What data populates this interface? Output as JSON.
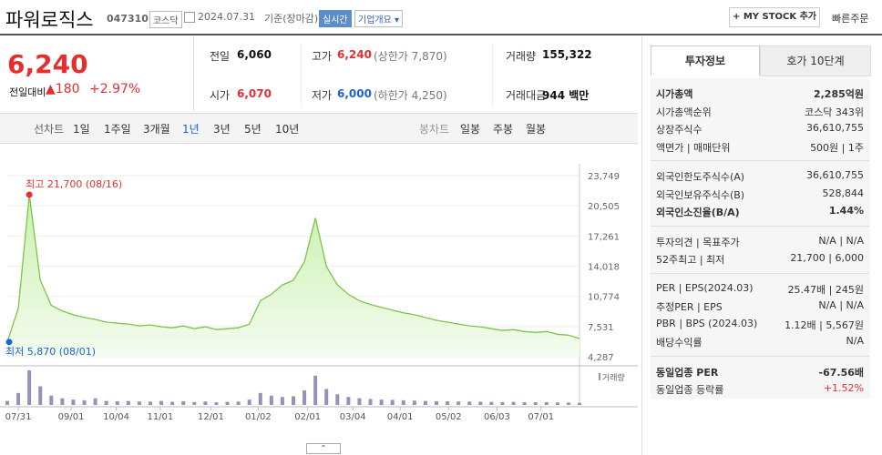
{
  "header": {
    "name": "파워로직스",
    "code": "047310",
    "market": "코스닥",
    "date": "2024.07.31",
    "basis": "기준(장마감)",
    "realtime": "실시간",
    "company": "기업개요",
    "mystock": "MY STOCK 추가",
    "quick_order": "빠른주문"
  },
  "price": {
    "current": "6,240",
    "change_label": "전일대비",
    "change": "180",
    "change_pct": "+2.97%"
  },
  "summary": [
    {
      "label": "전일",
      "value": "6,060"
    },
    {
      "label": "고가",
      "value": "6,240",
      "sub": "(상한가 7,870)"
    },
    {
      "label": "거래량",
      "value": "155,322"
    },
    {
      "label": "시가",
      "value": "6,070"
    },
    {
      "label": "저가",
      "value": "6,000",
      "sub": "(하한가 4,250)"
    },
    {
      "label": "거래대금",
      "value": "944 백만"
    }
  ],
  "tabs": {
    "line": "선차트",
    "periods": [
      "1일",
      "1주일",
      "3개월",
      "1년",
      "3년",
      "5년",
      "10년"
    ],
    "candle": "봉차트",
    "candles": [
      "일봉",
      "주봉",
      "월봉"
    ]
  },
  "chart_data": {
    "type": "line",
    "color": "#7cc44a",
    "values": [
      5870,
      9500,
      21700,
      12500,
      9800,
      9200,
      8800,
      8500,
      8300,
      8000,
      7900,
      7800,
      7600,
      7700,
      7500,
      7400,
      7600,
      7300,
      7500,
      7200,
      7300,
      7400,
      7800,
      10300,
      11000,
      12000,
      12500,
      14500,
      19200,
      14000,
      12000,
      11000,
      10300,
      9900,
      9600,
      9300,
      9000,
      8800,
      8500,
      8200,
      8000,
      7800,
      7600,
      7500,
      7300,
      7100,
      7200,
      7000,
      6900,
      7000,
      6700,
      6600,
      6240
    ],
    "volume": [
      300,
      900,
      2600,
      1400,
      700,
      500,
      400,
      350,
      500,
      300,
      280,
      300,
      260,
      250,
      300,
      240,
      280,
      220,
      260,
      200,
      230,
      250,
      400,
      900,
      700,
      600,
      650,
      1100,
      2200,
      1200,
      800,
      600,
      500,
      450,
      400,
      380,
      350,
      330,
      300,
      280,
      270,
      260,
      250,
      240,
      230,
      220,
      230,
      210,
      200,
      210,
      190,
      180,
      155
    ],
    "volume_label": "거래량",
    "xlim": [
      0,
      52
    ],
    "ylim": [
      4287,
      23749
    ],
    "yticks": [
      {
        "value": 23749,
        "label": "23,749"
      },
      {
        "value": 20505,
        "label": "20,505"
      },
      {
        "value": 17261,
        "label": "17,261"
      },
      {
        "value": 14018,
        "label": "14,018"
      },
      {
        "value": 10774,
        "label": "10,774"
      },
      {
        "value": 7531,
        "label": "7,531"
      },
      {
        "value": 4287,
        "label": "4,287"
      }
    ],
    "xticks": [
      {
        "value": 1,
        "label": "07/31"
      },
      {
        "value": 5.8,
        "label": "09/01"
      },
      {
        "value": 9.9,
        "label": "10/04"
      },
      {
        "value": 13.9,
        "label": "11/01"
      },
      {
        "value": 18.5,
        "label": "12/01"
      },
      {
        "value": 22.8,
        "label": "01/02"
      },
      {
        "value": 27.3,
        "label": "02/01"
      },
      {
        "value": 31.4,
        "label": "03/04"
      },
      {
        "value": 35.7,
        "label": "04/01"
      },
      {
        "value": 40.1,
        "label": "05/02"
      },
      {
        "value": 44.5,
        "label": "06/03"
      },
      {
        "value": 48.5,
        "label": "07/01"
      }
    ],
    "high_label": "최고 21,700 (08/16)",
    "low_label": "최저 5,870 (08/01)",
    "grid": true
  },
  "invest": {
    "tabs": [
      "투자정보",
      "호가 10단계"
    ],
    "sections": [
      [
        {
          "label": "시가총액",
          "value": "2,285억원"
        },
        {
          "label": "시가총액순위",
          "value": "코스닥 343위"
        },
        {
          "label": "상장주식수",
          "value": "36,610,755"
        },
        {
          "label": "액면가 | 매매단위",
          "value": "500원 | 1주"
        }
      ],
      [
        {
          "label": "외국인한도주식수(A)",
          "value": "36,610,755"
        },
        {
          "label": "외국인보유주식수(B)",
          "value": "528,844"
        },
        {
          "label": "외국인소진율(B/A)",
          "value": "1.44%"
        }
      ],
      [
        {
          "label": "투자의견 | 목표주가",
          "value": "N/A | N/A"
        },
        {
          "label": "52주최고 | 최저",
          "value": "21,700 | 6,000"
        }
      ],
      [
        {
          "label": "PER | EPS(2024.03)",
          "value": "25.47배 | 245원"
        },
        {
          "label": "추정PER | EPS",
          "value": "N/A | N/A"
        },
        {
          "label": "PBR | BPS (2024.03)",
          "value": "1.12배 | 5,567원"
        },
        {
          "label": "배당수익률",
          "value": "N/A"
        }
      ],
      [
        {
          "label": "동일업종 PER",
          "value": "-67.56배"
        },
        {
          "label": "동일업종 등락률",
          "value": "+1.52%"
        }
      ]
    ]
  }
}
